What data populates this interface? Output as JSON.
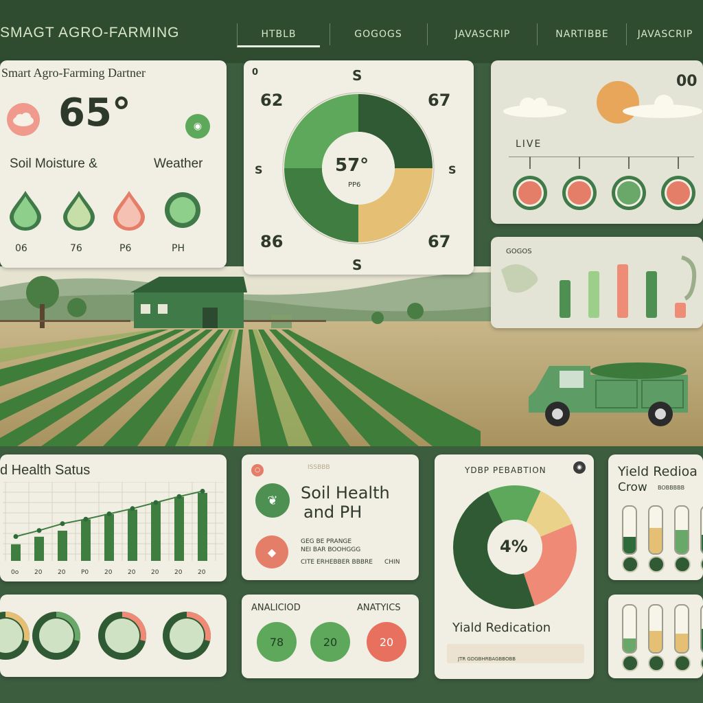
{
  "app": {
    "title": "SMAGT AGRO-FARMING"
  },
  "nav": {
    "tabs": [
      {
        "label": "HTBLB",
        "active": true
      },
      {
        "label": "GOGOGS"
      },
      {
        "label": "JAVASCRIP"
      },
      {
        "label": "NARTIBBE"
      },
      {
        "label": "JAVASCRIP"
      }
    ]
  },
  "weather_card": {
    "title": "Smart Agro-Farming Dartner",
    "temperature": "65°",
    "subtitle_left": "Soil Moisture &",
    "subtitle_right": "Weather",
    "drops": [
      {
        "label": "06",
        "color": "#8fcf8c"
      },
      {
        "label": "76",
        "color": "#c6dfa9"
      },
      {
        "label": "P6",
        "color": "#ef9a8c"
      },
      {
        "label": "PH",
        "color": "#8fcf8c"
      }
    ]
  },
  "gauge_card": {
    "center_value": "57°",
    "center_sub": "PP6",
    "top_left": "62",
    "top_right": "67",
    "bottom_left": "86",
    "bottom_right": "67",
    "compass_n": "S",
    "compass_s": "S",
    "compass_w": "S",
    "compass_e": "S",
    "ring_marker": "0",
    "segments": [
      {
        "value": 25,
        "color": "#5ea85c"
      },
      {
        "value": 25,
        "color": "#2f5a33"
      },
      {
        "value": 25,
        "color": "#e5bf74"
      },
      {
        "value": 25,
        "color": "#3f7d41"
      }
    ]
  },
  "live_card": {
    "label": "LIVE",
    "badge": "00",
    "circles": [
      {
        "color": "#e57e69"
      },
      {
        "color": "#e57e69"
      },
      {
        "color": "#6aa86a"
      },
      {
        "color": "#e57e69"
      }
    ]
  },
  "bars_card": {
    "header": "GOGOS",
    "bars": [
      {
        "value": 55,
        "color": "#4e8f52"
      },
      {
        "value": 68,
        "color": "#9ccf8a"
      },
      {
        "value": 78,
        "color": "#ef8c75"
      },
      {
        "value": 68,
        "color": "#4e8f52"
      },
      {
        "value": 22,
        "color": "#ef8c75"
      }
    ]
  },
  "health_status": {
    "title": "d Health Satus",
    "x_labels": [
      "0o",
      "20",
      "20",
      "P0",
      "20",
      "20",
      "20",
      "20",
      "20"
    ],
    "bars": [
      22,
      32,
      40,
      55,
      62,
      68,
      78,
      85,
      90
    ],
    "line": [
      25,
      33,
      42,
      48,
      55,
      62,
      70,
      78,
      85
    ]
  },
  "soil_card": {
    "tag": "ISSBBB",
    "title_1": "Soil Health",
    "title_2": "and PH",
    "line_1": "GEG BE PRANGE",
    "line_2": "NEI BAR BOOHGGG",
    "line_3": "CITE ERHEBBER BBBRE",
    "line_3b": "CHIN"
  },
  "yield_prediction": {
    "title": "YDBP PEBABTION",
    "center": "4%",
    "caption": "Yiald Redication",
    "footer": "JTR GDGBHRBAGBBOBB",
    "segments": [
      {
        "value": 14,
        "color": "#5ea85c"
      },
      {
        "value": 12,
        "color": "#ead28a"
      },
      {
        "value": 26,
        "color": "#ef8a76"
      },
      {
        "value": 48,
        "color": "#2f5a33"
      }
    ]
  },
  "yield_crow": {
    "title_1": "Yield Redioa",
    "title_2": "Crow",
    "title_2b": "BOBBBBB",
    "tubes_top": [
      {
        "fill": 0.35,
        "color": "#2f6a3a"
      },
      {
        "fill": 0.55,
        "color": "#e5bf74"
      },
      {
        "fill": 0.5,
        "color": "#6aa86a"
      },
      {
        "fill": 0.4,
        "color": "#2f6a3a"
      }
    ],
    "tubes_bottom": [
      {
        "fill": 0.3,
        "color": "#6aa86a"
      },
      {
        "fill": 0.45,
        "color": "#e5bf74"
      },
      {
        "fill": 0.4,
        "color": "#e5bf74"
      },
      {
        "fill": 0.5,
        "color": "#2f6a3a"
      }
    ]
  },
  "rings_card": {
    "rings": [
      {
        "color": "#e5bf74"
      },
      {
        "color": "#6aa86a"
      },
      {
        "color": "#ef8a76"
      },
      {
        "color": "#ef8a76"
      }
    ]
  },
  "analytics_card": {
    "label_left": "ANALICIOD",
    "label_right": "ANATYICS",
    "circles": [
      {
        "value": "78",
        "color": "#5ea85c"
      },
      {
        "value": "20",
        "color": "#5ea85c"
      },
      {
        "value": "20",
        "color": "#e8705e"
      }
    ]
  }
}
